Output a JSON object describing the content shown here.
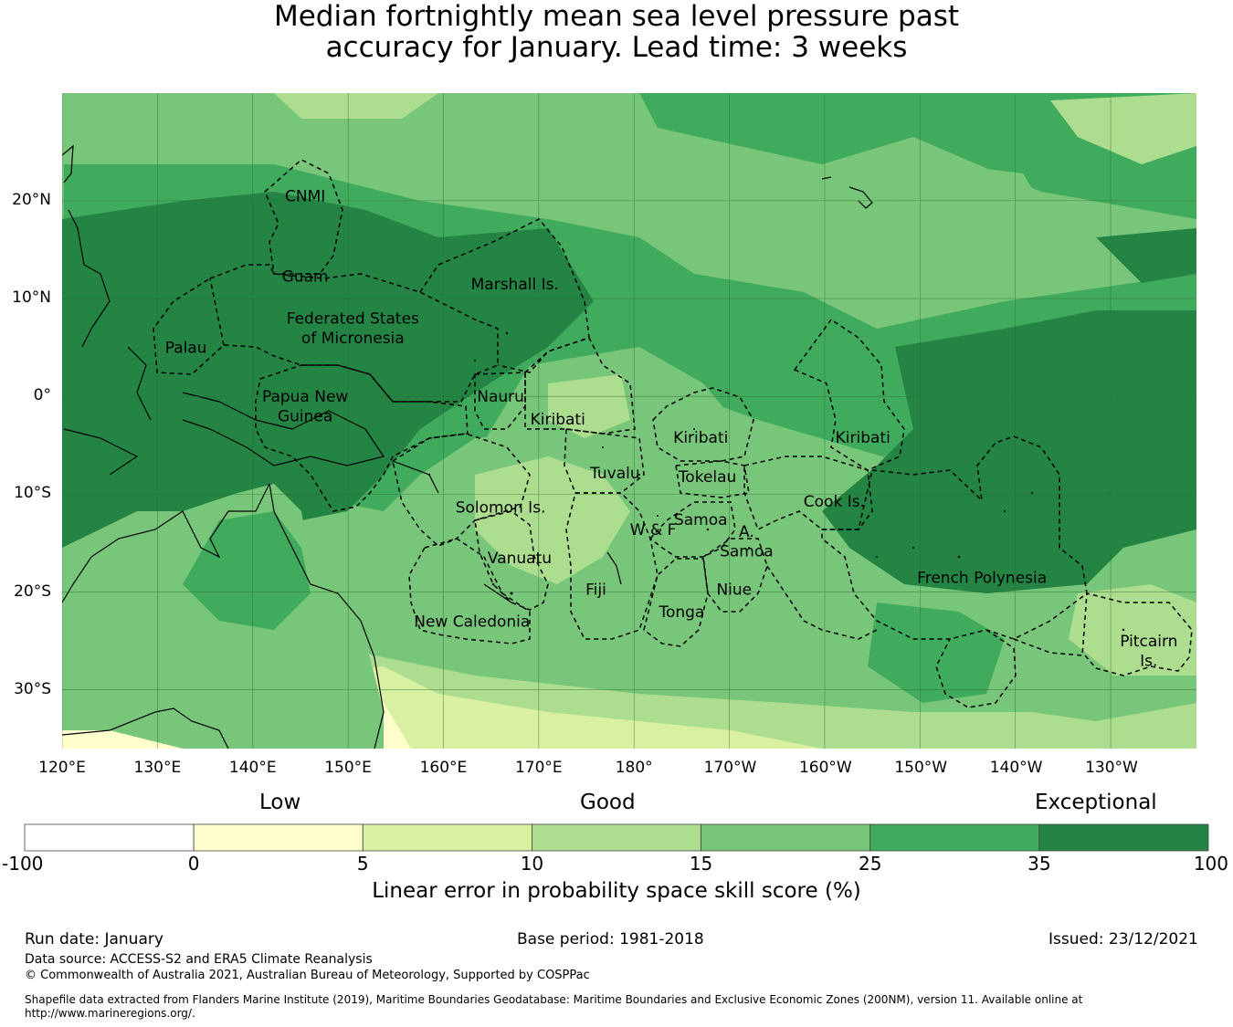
{
  "title": {
    "line1": "Median fortnightly mean sea level pressure past",
    "line2": "accuracy for January. Lead time: 3 weeks"
  },
  "map": {
    "lon_min": 120,
    "lon_max": 239,
    "lat_min": -36,
    "lat_max": 31,
    "lon_ticks": [
      "120°E",
      "130°E",
      "140°E",
      "150°E",
      "160°E",
      "170°E",
      "180°",
      "170°W",
      "160°W",
      "150°W",
      "140°W",
      "130°W"
    ],
    "lon_tick_values": [
      120,
      130,
      140,
      150,
      160,
      170,
      180,
      190,
      200,
      210,
      220,
      230
    ],
    "lat_ticks": [
      "20°N",
      "10°N",
      "0°",
      "10°S",
      "20°S",
      "30°S"
    ],
    "lat_tick_values": [
      20,
      10,
      0,
      -10,
      -20,
      -30
    ],
    "regions": [
      {
        "label": "CNMI",
        "lon": 145.5,
        "lat": 20.5
      },
      {
        "label": "Guam",
        "lon": 145.5,
        "lat": 12.3
      },
      {
        "label": "Marshall Is.",
        "lon": 167.5,
        "lat": 11.5
      },
      {
        "label": "Federated States",
        "lon": 150.5,
        "lat": 8.0
      },
      {
        "label": "of Micronesia",
        "lon": 150.5,
        "lat": 6.0
      },
      {
        "label": "Palau",
        "lon": 133.0,
        "lat": 5.0
      },
      {
        "label": "Papua New",
        "lon": 145.5,
        "lat": 0.0
      },
      {
        "label": "Guinea",
        "lon": 145.5,
        "lat": -2.0
      },
      {
        "label": "Nauru",
        "lon": 166.0,
        "lat": 0.0
      },
      {
        "label": "Kiribati",
        "lon": 172.0,
        "lat": -2.3
      },
      {
        "label": "Kiribati",
        "lon": 187.0,
        "lat": -4.2
      },
      {
        "label": "Kiribati",
        "lon": 204.0,
        "lat": -4.2
      },
      {
        "label": "Tuvalu",
        "lon": 178.0,
        "lat": -7.8
      },
      {
        "label": "Tokelau",
        "lon": 187.7,
        "lat": -8.2
      },
      {
        "label": "Cook Is.",
        "lon": 201.0,
        "lat": -10.7
      },
      {
        "label": "Solomon Is.",
        "lon": 166.0,
        "lat": -11.3
      },
      {
        "label": "Samoa",
        "lon": 187.0,
        "lat": -12.6
      },
      {
        "label": "W & F",
        "lon": 182.0,
        "lat": -13.6
      },
      {
        "label": "A.",
        "lon": 191.8,
        "lat": -13.8
      },
      {
        "label": "Samoa",
        "lon": 191.8,
        "lat": -15.8
      },
      {
        "label": "Vanuatu",
        "lon": 168.0,
        "lat": -16.5
      },
      {
        "label": "Fiji",
        "lon": 176.0,
        "lat": -19.7
      },
      {
        "label": "Niue",
        "lon": 190.5,
        "lat": -19.7
      },
      {
        "label": "Tonga",
        "lon": 185.0,
        "lat": -22.0
      },
      {
        "label": "French Polynesia",
        "lon": 216.5,
        "lat": -18.5
      },
      {
        "label": "New Caledonia",
        "lon": 163.0,
        "lat": -23.0
      },
      {
        "label": "Pitcairn",
        "lon": 234.0,
        "lat": -25.0
      },
      {
        "label": "Is.",
        "lon": 234.0,
        "lat": -27.0
      }
    ]
  },
  "colorbar": {
    "boundaries": [
      "-100",
      "0",
      "5",
      "10",
      "15",
      "25",
      "35",
      "100"
    ],
    "colors": [
      "#ffffff",
      "#ffffcc",
      "#d9f0a3",
      "#addd8e",
      "#78c679",
      "#41ab5d",
      "#238443"
    ],
    "category_labels": [
      "Low",
      "Good",
      "Exceptional"
    ],
    "title": "Linear error in probability space skill score (%)"
  },
  "footer": {
    "run_date": "Run date: January",
    "base_period": "Base period: 1981-2018",
    "issued": "Issued: 23/12/2021",
    "data_source": "Data source: ACCESS-S2 and ERA5 Climate Reanalysis",
    "copyright": "© Commonwealth of Australia 2021, Australian Bureau of Meteorology, Supported by COSPPac",
    "shapefile_line1": "Shapefile data extracted from Flanders Marine Institute (2019), Maritime Boundaries Geodatabase: Maritime Boundaries and Exclusive Economic Zones (200NM), version 11. Available online at",
    "shapefile_line2": "http://www.marineregions.org/."
  }
}
